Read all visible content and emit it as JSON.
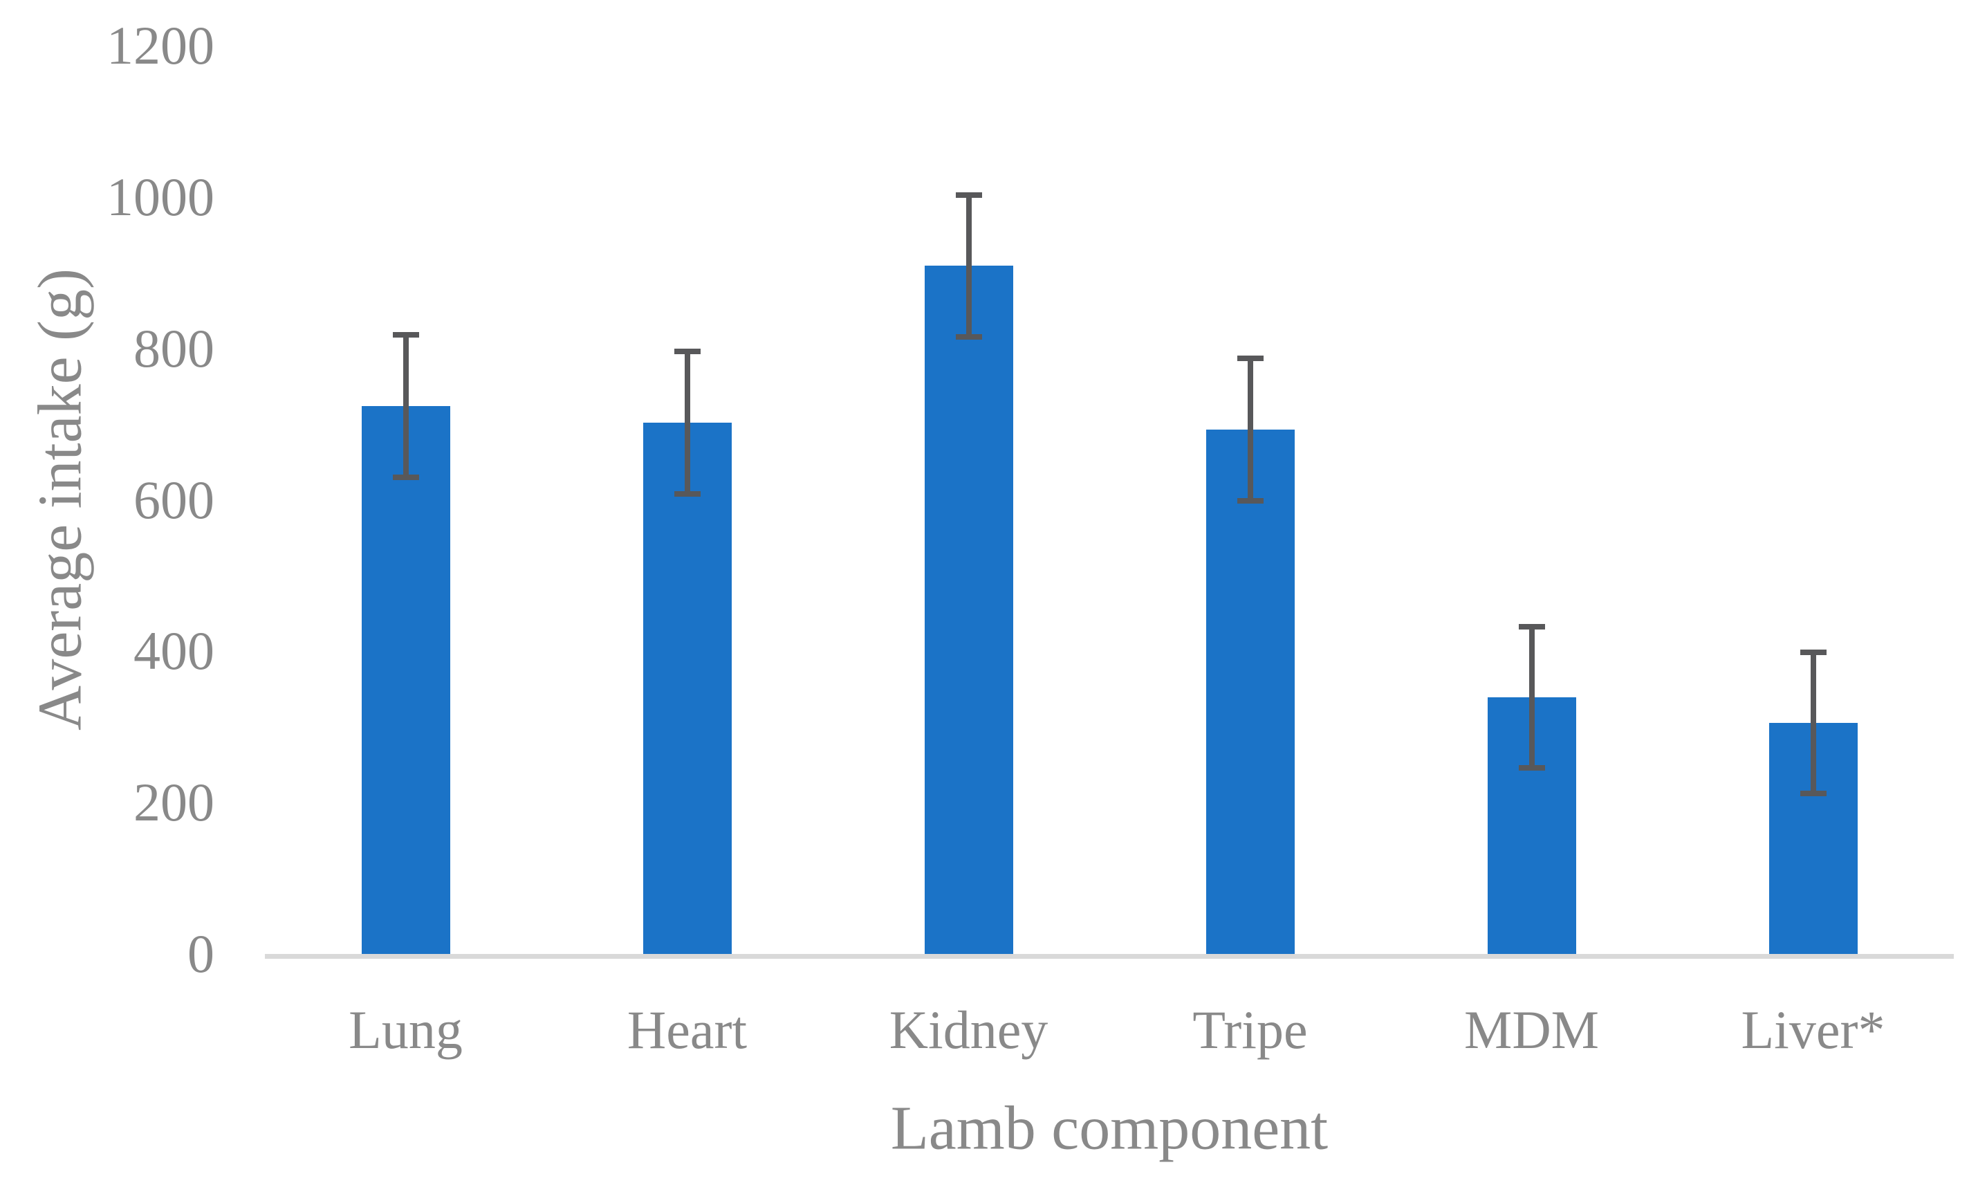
{
  "chart_data": {
    "type": "bar",
    "title": "",
    "xlabel": "Lamb component",
    "ylabel": "Average intake (g)",
    "categories": [
      "Lung",
      "Heart",
      "Kidney",
      "Tripe",
      "MDM",
      "Liver*"
    ],
    "values": [
      724,
      702,
      909,
      693,
      339,
      305
    ],
    "errors": [
      98,
      98,
      97,
      98,
      97,
      97
    ],
    "yticks": [
      0,
      200,
      400,
      600,
      800,
      1000,
      1200
    ],
    "ylim": [
      0,
      1200
    ],
    "grid": false,
    "legend": "none",
    "bar_color": "#1B73C7",
    "error_bar_color": "#58585A",
    "axis_line_color": "#D9D9D9",
    "text_color": "#898989"
  }
}
